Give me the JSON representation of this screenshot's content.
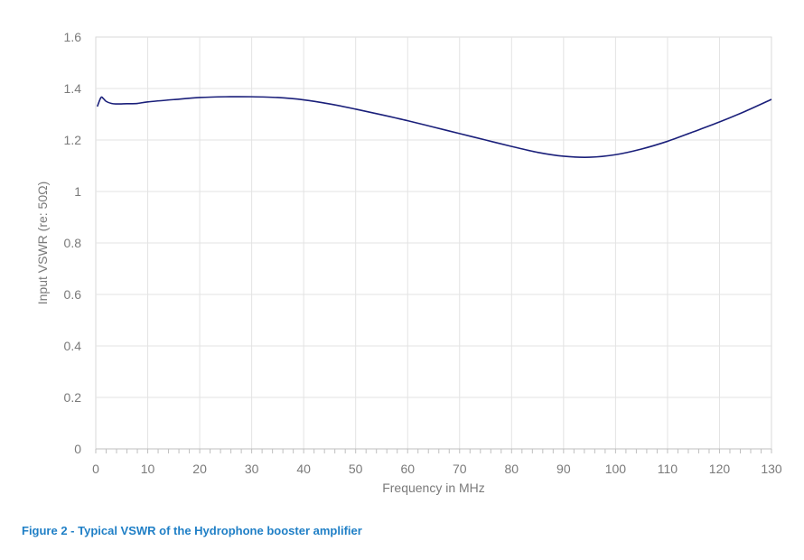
{
  "caption": "Figure 2 - Typical VSWR of the Hydrophone booster amplifier",
  "chart_data": {
    "type": "line",
    "title": "",
    "xlabel": "Frequency in MHz",
    "ylabel": "Input VSWR (re: 50Ω)",
    "xlim": [
      0,
      130
    ],
    "ylim": [
      0,
      1.6
    ],
    "x_ticks": [
      0,
      10,
      20,
      30,
      40,
      50,
      60,
      70,
      80,
      90,
      100,
      110,
      120,
      130
    ],
    "y_ticks": [
      "0",
      "0.2",
      "0.4",
      "0.6",
      "0.8",
      "1",
      "1.2",
      "1.4",
      "1.6"
    ],
    "grid": true,
    "legend": "none",
    "series": [
      {
        "color": "#1a1f7a",
        "x": [
          0.3,
          1,
          1.5,
          2,
          3,
          4,
          6,
          8,
          10,
          15,
          20,
          25,
          30,
          35,
          40,
          45,
          50,
          55,
          60,
          65,
          70,
          75,
          80,
          85,
          90,
          95,
          100,
          105,
          110,
          115,
          120,
          125,
          130
        ],
        "y": [
          1.33,
          1.365,
          1.36,
          1.35,
          1.342,
          1.34,
          1.341,
          1.342,
          1.348,
          1.357,
          1.365,
          1.368,
          1.368,
          1.365,
          1.356,
          1.34,
          1.32,
          1.298,
          1.275,
          1.25,
          1.225,
          1.2,
          1.175,
          1.152,
          1.137,
          1.133,
          1.143,
          1.165,
          1.195,
          1.232,
          1.27,
          1.312,
          1.358
        ]
      }
    ]
  }
}
